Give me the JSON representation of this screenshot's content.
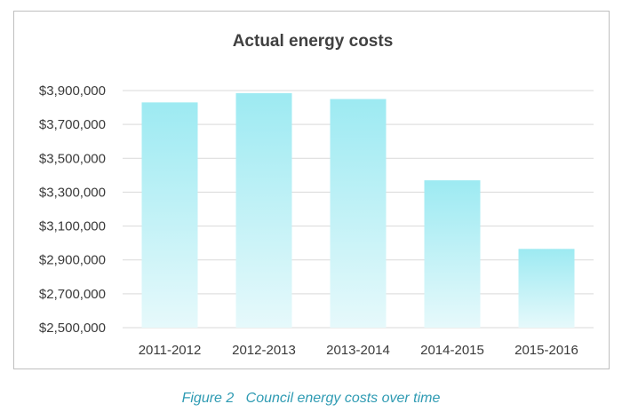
{
  "chart_data": {
    "type": "bar",
    "title": "Actual energy costs",
    "xlabel": "",
    "ylabel": "",
    "categories": [
      "2011-2012",
      "2012-2013",
      "2013-2014",
      "2014-2015",
      "2015-2016"
    ],
    "values": [
      3830000,
      3885000,
      3850000,
      3370000,
      2965000
    ],
    "ylim": [
      2500000,
      3900000
    ],
    "yticks": [
      2500000,
      2700000,
      2900000,
      3100000,
      3300000,
      3500000,
      3700000,
      3900000
    ],
    "ytick_labels": [
      "$2,500,000",
      "$2,700,000",
      "$2,900,000",
      "$3,100,000",
      "$3,300,000",
      "$3,500,000",
      "$3,700,000",
      "$3,900,000"
    ],
    "grid": true,
    "legend": "none",
    "colors": {
      "bar_top": "#9deaf2",
      "bar_bottom": "#e6f9fb",
      "grid": "#d9d9d9",
      "title": "#404040",
      "caption": "#2f9bb3"
    }
  },
  "caption": {
    "label": "Figure 2",
    "text": "Council energy costs over time"
  }
}
